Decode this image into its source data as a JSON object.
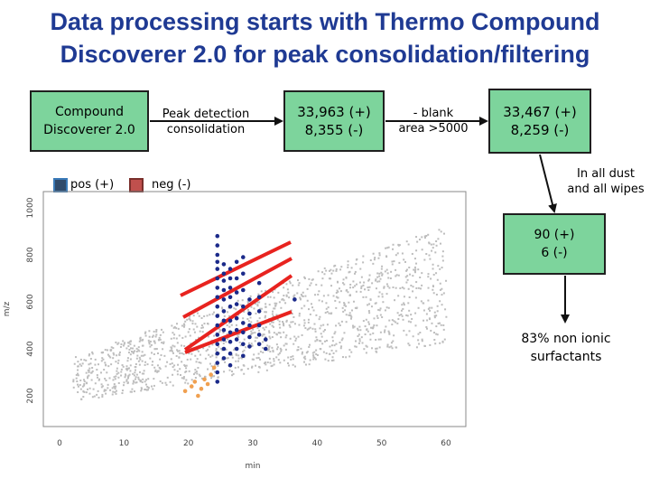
{
  "title_line1": "Data processing starts with Thermo Compound",
  "title_line2": "Discoverer 2.0 for peak consolidation/filtering",
  "box_cd": {
    "line1": "Compound",
    "line2": "Discoverer 2.0"
  },
  "step_peak": {
    "line1": "Peak detection",
    "line2": "consolidation"
  },
  "box_counts1": {
    "pos": "33,963 (+)",
    "neg": "8,355 (-)"
  },
  "step_blank": {
    "line1": "- blank",
    "line2": "area >5000"
  },
  "box_counts2": {
    "pos": "33,467 (+)",
    "neg": "8,259 (-)"
  },
  "step_dust": {
    "line1": "In all dust",
    "line2": "and all wipes"
  },
  "box_counts3": {
    "pos": "90 (+)",
    "neg": "6 (-)"
  },
  "result": {
    "line1": "83% non ionic",
    "line2": "surfactants"
  },
  "legend": {
    "pos_label": "pos (+)",
    "pos_color": "#2e4a6b",
    "neg_label": "neg (-)",
    "neg_color": "#c0504d"
  },
  "colors": {
    "title": "#1f3a93",
    "box_fill": "#7dd49c",
    "highlight_line": "#e8231f",
    "pos_point": "#1b2a8a",
    "neg_point": "#f0a050",
    "background_point": "#bdbdbd"
  },
  "chart_data": {
    "type": "scatter",
    "xlabel": "min",
    "ylabel": "m/z",
    "x_ticks": [
      "0",
      "10",
      "20",
      "30",
      "40",
      "50",
      "60"
    ],
    "y_ticks": [
      "200",
      "400",
      "600",
      "800",
      "1000"
    ],
    "xlim": [
      0,
      60
    ],
    "ylim": [
      100,
      1000
    ],
    "series": [
      {
        "values": [
          [
            24.5,
            880
          ],
          [
            24.5,
            840
          ],
          [
            24.5,
            800
          ],
          [
            24.5,
            770
          ],
          [
            24.5,
            740
          ],
          [
            24.5,
            700
          ],
          [
            24.5,
            660
          ],
          [
            24.5,
            620
          ],
          [
            24.5,
            580
          ],
          [
            24.5,
            540
          ],
          [
            24.5,
            500
          ],
          [
            24.5,
            460
          ],
          [
            24.5,
            420
          ],
          [
            24.5,
            380
          ],
          [
            24.5,
            340
          ],
          [
            24.5,
            300
          ],
          [
            24.5,
            260
          ],
          [
            25.5,
            760
          ],
          [
            25.5,
            720
          ],
          [
            25.5,
            690
          ],
          [
            25.5,
            650
          ],
          [
            25.5,
            610
          ],
          [
            25.5,
            560
          ],
          [
            25.5,
            520
          ],
          [
            25.5,
            480
          ],
          [
            25.5,
            440
          ],
          [
            25.5,
            400
          ],
          [
            25.5,
            360
          ],
          [
            26.5,
            740
          ],
          [
            26.5,
            700
          ],
          [
            26.5,
            660
          ],
          [
            26.5,
            620
          ],
          [
            26.5,
            580
          ],
          [
            26.5,
            520
          ],
          [
            26.5,
            470
          ],
          [
            26.5,
            430
          ],
          [
            26.5,
            380
          ],
          [
            26.5,
            330
          ],
          [
            27.5,
            770
          ],
          [
            27.5,
            700
          ],
          [
            27.5,
            640
          ],
          [
            27.5,
            590
          ],
          [
            27.5,
            530
          ],
          [
            27.5,
            480
          ],
          [
            27.5,
            440
          ],
          [
            27.5,
            400
          ],
          [
            28.5,
            790
          ],
          [
            28.5,
            720
          ],
          [
            28.5,
            650
          ],
          [
            28.5,
            580
          ],
          [
            28.5,
            510
          ],
          [
            28.5,
            470
          ],
          [
            28.5,
            420
          ],
          [
            28.5,
            370
          ],
          [
            29.5,
            610
          ],
          [
            29.5,
            550
          ],
          [
            29.5,
            500
          ],
          [
            29.5,
            450
          ],
          [
            29.5,
            410
          ],
          [
            31,
            680
          ],
          [
            31,
            620
          ],
          [
            31,
            560
          ],
          [
            31,
            500
          ],
          [
            31,
            460
          ],
          [
            31,
            420
          ],
          [
            32,
            440
          ],
          [
            32,
            400
          ],
          [
            36.5,
            610
          ]
        ]
      },
      {
        "values": [
          [
            19.5,
            220
          ],
          [
            20.5,
            240
          ],
          [
            21,
            260
          ],
          [
            22,
            230
          ],
          [
            22.5,
            270
          ],
          [
            23,
            250
          ],
          [
            23.5,
            290
          ],
          [
            24,
            320
          ],
          [
            21.5,
            200
          ]
        ]
      }
    ]
  }
}
